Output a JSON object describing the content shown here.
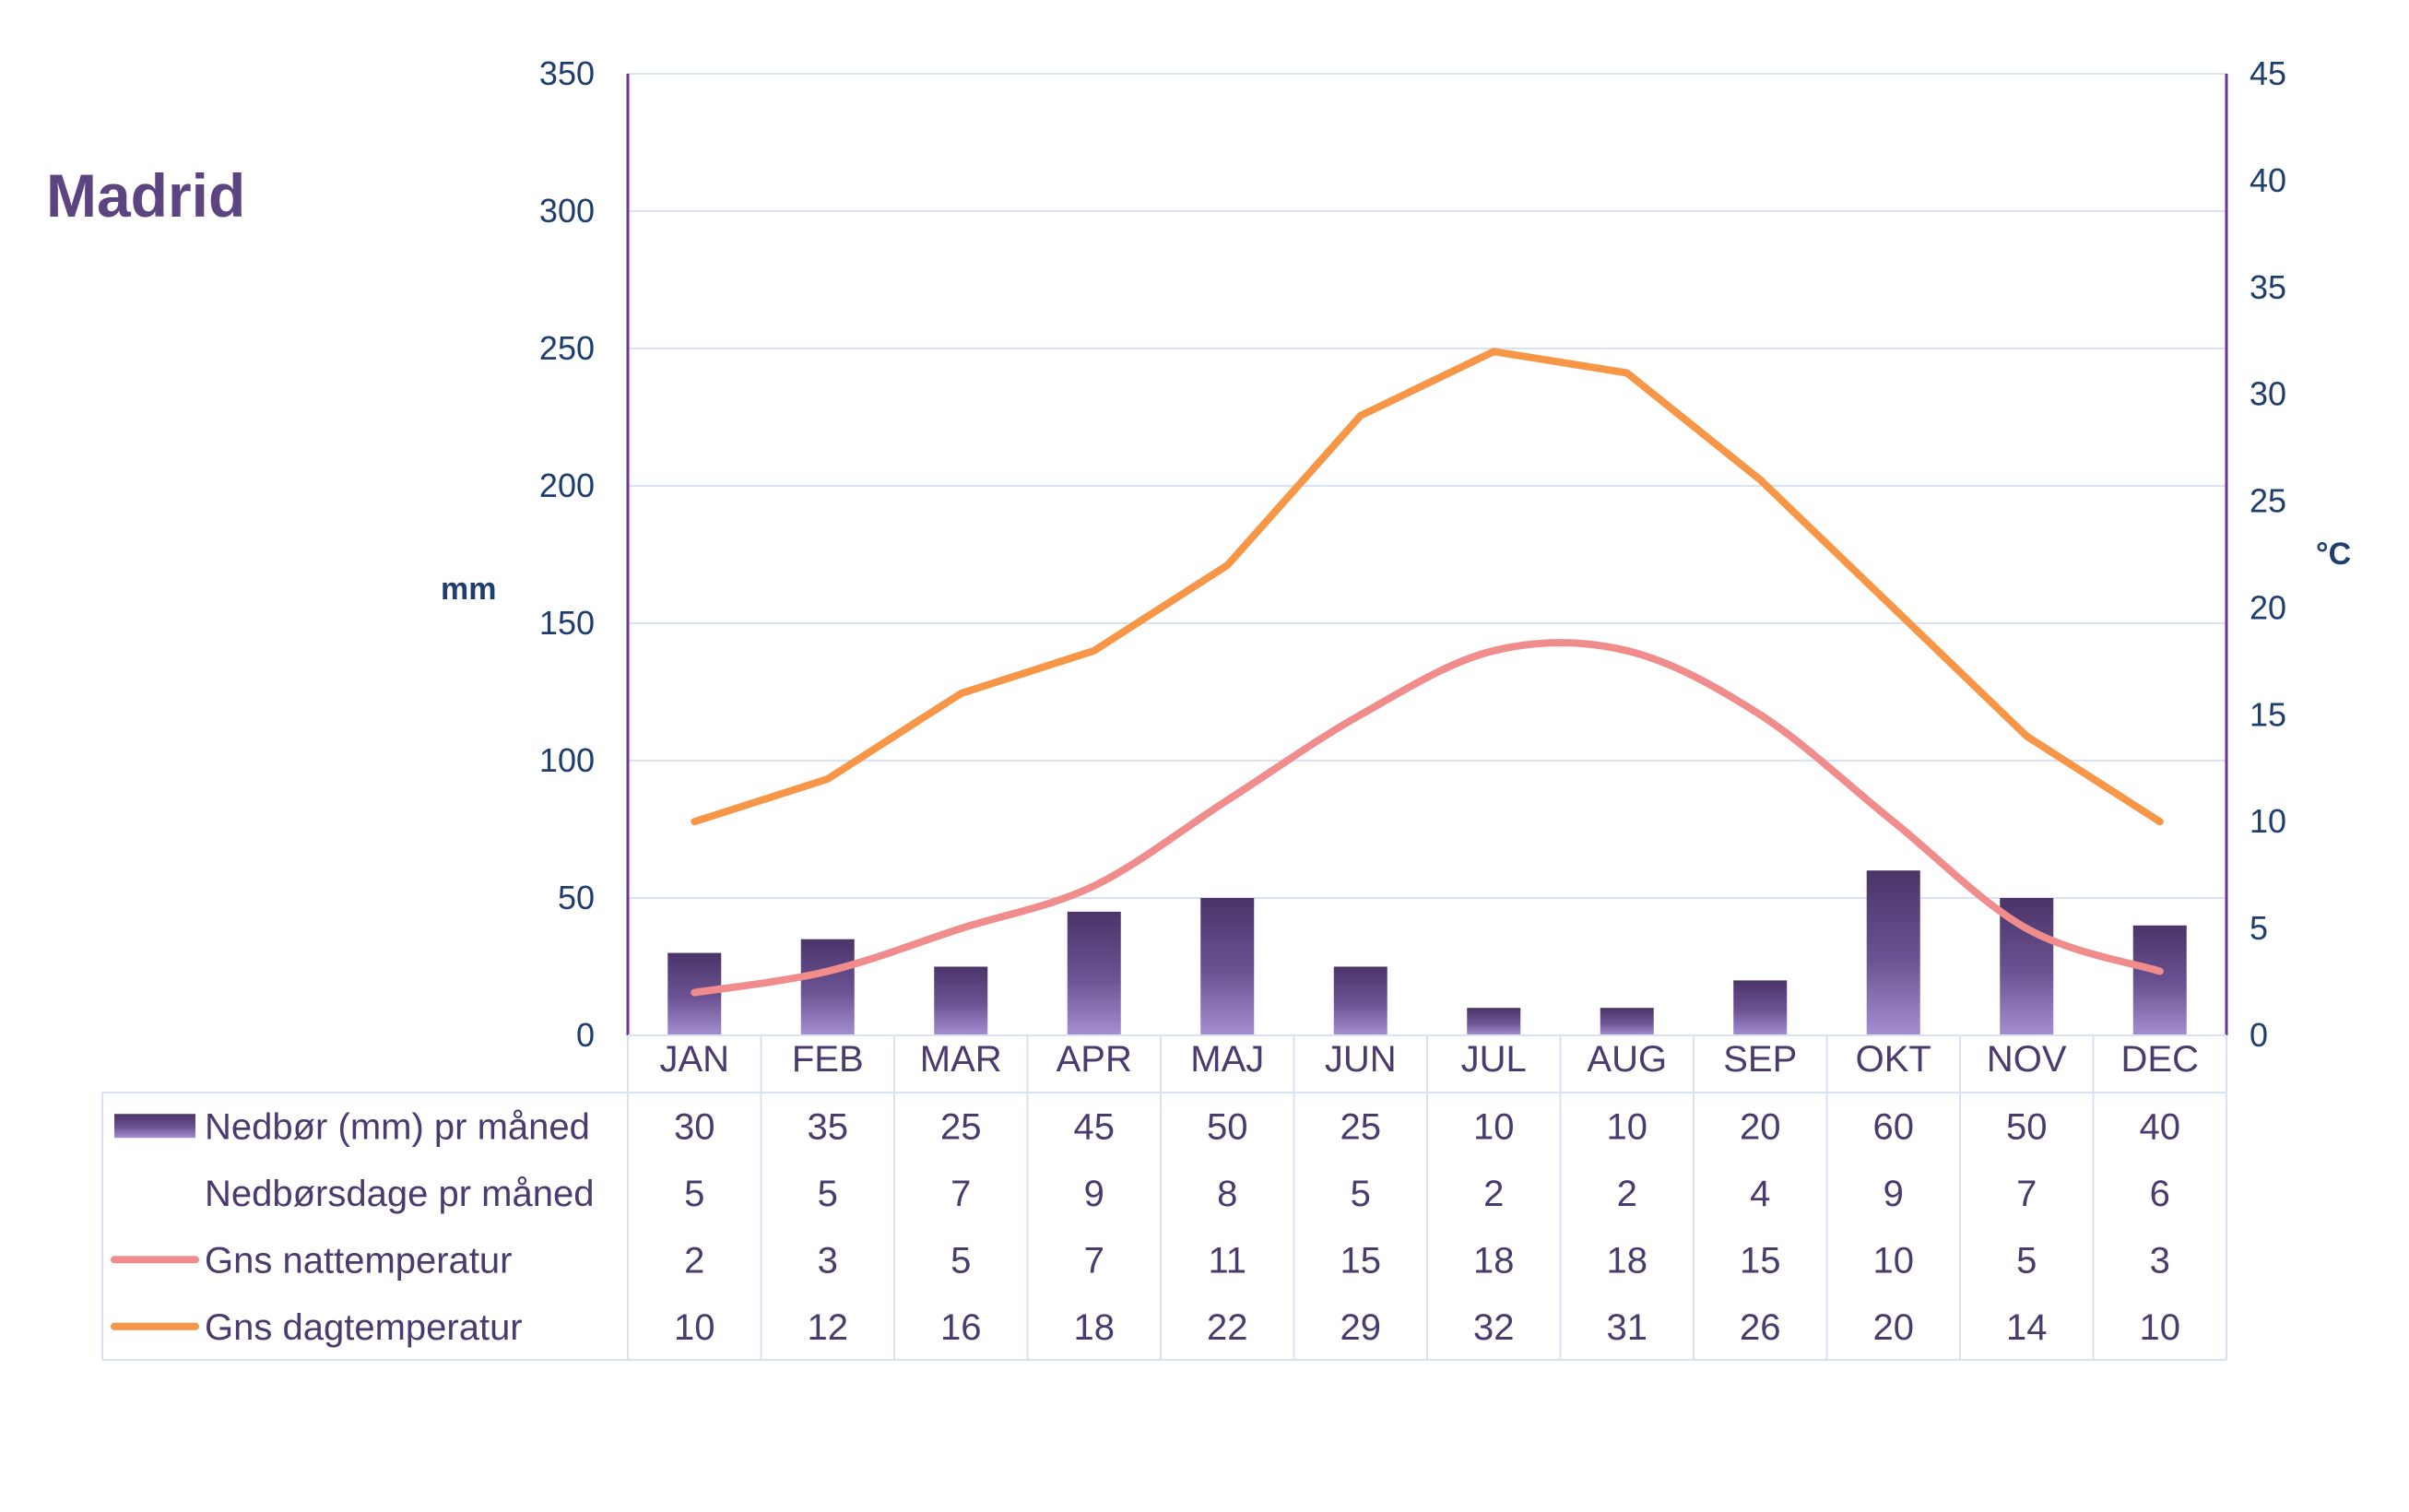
{
  "title": "Madrid",
  "left_unit": "mm",
  "right_unit": "°C",
  "colors": {
    "bar_dark": "#4a3468",
    "bar_light": "#a58fd0",
    "night_line": "#f08c8c",
    "day_line": "#f79646",
    "axis_text": "#1f3d6e",
    "axis_line": "#7030a0",
    "grid": "#d9e2f3"
  },
  "chart_data": {
    "type": "bar",
    "categories": [
      "JAN",
      "FEB",
      "MAR",
      "APR",
      "MAJ",
      "JUN",
      "JUL",
      "AUG",
      "SEP",
      "OKT",
      "NOV",
      "DEC"
    ],
    "left_axis": {
      "ylim": [
        0,
        350
      ],
      "ticks": [
        0,
        50,
        100,
        150,
        200,
        250,
        300,
        350
      ],
      "label": "mm"
    },
    "right_axis": {
      "ylim": [
        0,
        45
      ],
      "ticks": [
        0,
        5,
        10,
        15,
        20,
        25,
        30,
        35,
        40,
        45
      ],
      "label": "°C"
    },
    "grid": true,
    "legend": "data-table-bottom",
    "series": [
      {
        "name": "Nedbør (mm) pr måned",
        "type": "bar",
        "axis": "left",
        "values": [
          30,
          35,
          25,
          45,
          50,
          25,
          10,
          10,
          20,
          60,
          50,
          40
        ]
      },
      {
        "name": "Nedbørsdage pr måned",
        "type": "table-only",
        "values": [
          5,
          5,
          7,
          9,
          8,
          5,
          2,
          2,
          4,
          9,
          7,
          6
        ]
      },
      {
        "name": "Gns nattemperatur",
        "type": "line",
        "axis": "right",
        "smooth": true,
        "values": [
          2,
          3,
          5,
          7,
          11,
          15,
          18,
          18,
          15,
          10,
          5,
          3
        ]
      },
      {
        "name": "Gns dagtemperatur",
        "type": "line",
        "axis": "right",
        "values": [
          10,
          12,
          16,
          18,
          22,
          29,
          32,
          31,
          26,
          20,
          14,
          10
        ]
      }
    ]
  }
}
